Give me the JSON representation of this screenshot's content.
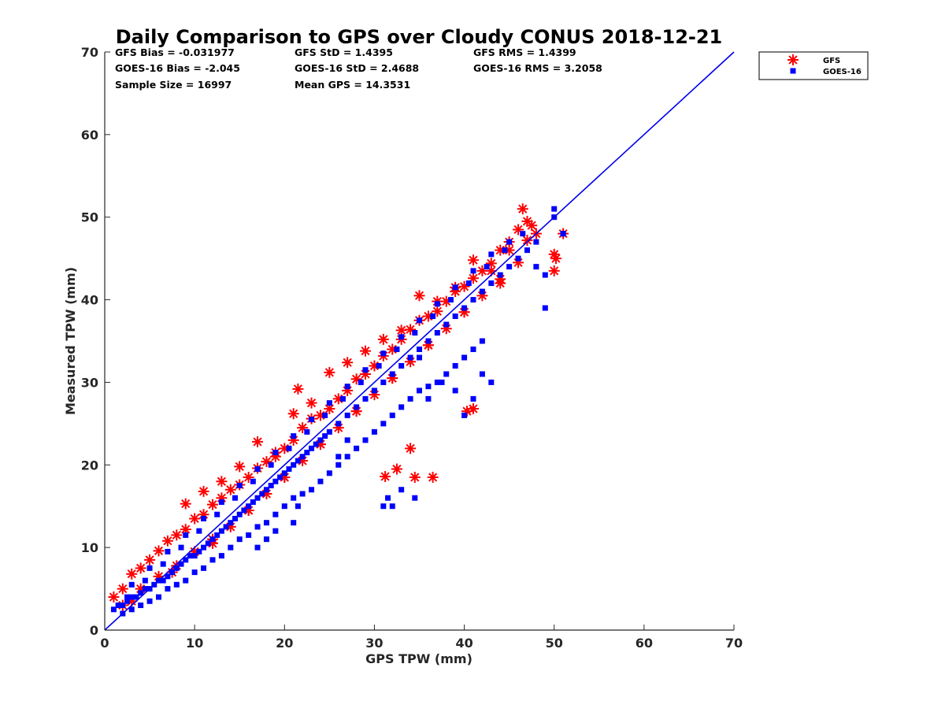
{
  "chart_data": {
    "type": "scatter",
    "title": "Daily Comparison to GPS over Cloudy CONUS 2018-12-21",
    "xlabel": "GPS TPW (mm)",
    "ylabel": "Measured TPW (mm)",
    "xlim": [
      0,
      70
    ],
    "ylim": [
      0,
      70
    ],
    "xticks": [
      "0",
      "10",
      "20",
      "30",
      "40",
      "50",
      "60",
      "70"
    ],
    "yticks": [
      "0",
      "10",
      "20",
      "30",
      "40",
      "50",
      "60",
      "70"
    ],
    "grid": false,
    "legend_position": "outside-top-right",
    "stats": [
      "GFS Bias = -0.031977",
      "GFS StD = 1.4395",
      "GFS RMS = 1.4399",
      "GOES-16 Bias = -2.045",
      "GOES-16 StD = 2.4688",
      "GOES-16 RMS = 3.2058",
      "Sample Size = 16997",
      "Mean GPS = 14.3531"
    ],
    "reference_line": {
      "x": [
        0,
        70
      ],
      "y": [
        0,
        70
      ],
      "color": "#0000ee"
    },
    "series": [
      {
        "name": "GFS",
        "marker": "asterisk",
        "color": "#ff0000",
        "x": [
          1,
          2,
          3,
          4,
          5,
          6,
          7,
          8,
          9,
          10,
          11,
          12,
          13,
          14,
          15,
          16,
          17,
          18,
          19,
          20,
          21,
          22,
          23,
          24,
          25,
          26,
          27,
          28,
          29,
          30,
          31,
          32,
          33,
          34,
          35,
          36,
          37,
          38,
          39,
          40,
          41,
          42,
          43,
          44,
          45,
          46,
          47,
          48,
          2,
          4,
          6,
          8,
          10,
          12,
          14,
          16,
          18,
          20,
          22,
          24,
          26,
          28,
          30,
          32,
          34,
          36,
          38,
          40,
          42,
          44,
          46,
          9,
          11,
          13,
          15,
          17,
          19,
          21,
          23,
          25,
          27,
          29,
          31,
          33,
          35,
          37,
          39,
          41,
          43,
          45,
          47,
          21.5,
          34,
          36.5,
          31.2,
          32.5,
          34.5,
          40.3,
          41,
          50,
          50.2,
          50,
          51,
          46.5,
          47.5,
          3,
          7.5,
          12,
          16,
          20,
          24,
          28,
          32,
          36,
          40,
          44
        ],
        "y": [
          4,
          5,
          6.8,
          7.5,
          8.5,
          9.6,
          10.8,
          11.5,
          12.2,
          13.5,
          14,
          15.2,
          16,
          17,
          17.6,
          18.5,
          19.6,
          20.4,
          21,
          22,
          23,
          24.5,
          25.6,
          26,
          26.8,
          28,
          29,
          30.4,
          31,
          32,
          33.2,
          34,
          35.2,
          36.4,
          37.5,
          38,
          38.6,
          39.8,
          41,
          41.6,
          42.6,
          43.5,
          44.4,
          46,
          47,
          48.5,
          49.5,
          48,
          3,
          5,
          6.5,
          7.8,
          9.5,
          10.5,
          12.5,
          14.5,
          16.5,
          18.5,
          20.5,
          22.5,
          24.5,
          26.5,
          28.5,
          30.5,
          32.5,
          34.5,
          36.5,
          38.5,
          40.5,
          42.5,
          44.5,
          15.3,
          16.8,
          18,
          19.8,
          22.8,
          21.5,
          26.2,
          27.5,
          31.2,
          32.4,
          33.8,
          35.2,
          36.3,
          40.5,
          39.8,
          41.5,
          44.8,
          43.5,
          46,
          47.2,
          29.2,
          22,
          18.5,
          18.6,
          19.5,
          18.5,
          26.5,
          26.8,
          43.5,
          45,
          45.5,
          48,
          51,
          49,
          3.5,
          7,
          11,
          14.5,
          18.5,
          22.5,
          26.5,
          30.5,
          34.5,
          38.5,
          42
        ]
      },
      {
        "name": "GOES-16",
        "marker": "square",
        "color": "#0000ff",
        "x": [
          1,
          1.5,
          2,
          2.5,
          3,
          3.5,
          4,
          4.5,
          5,
          5.5,
          6,
          6.5,
          7,
          7.5,
          8,
          8.5,
          9,
          9.5,
          10,
          10.5,
          11,
          11.5,
          12,
          12.5,
          13,
          13.5,
          14,
          14.5,
          15,
          15.5,
          16,
          16.5,
          17,
          17.5,
          18,
          18.5,
          19,
          19.5,
          20,
          20.5,
          21,
          21.5,
          22,
          22.5,
          23,
          23.5,
          24,
          24.5,
          25,
          26,
          27,
          28,
          29,
          30,
          31,
          32,
          33,
          34,
          35,
          36,
          37,
          38,
          39,
          40,
          41,
          42,
          43,
          44,
          45,
          46,
          47,
          48,
          49,
          50,
          51,
          2,
          3,
          4,
          5,
          6,
          7,
          8,
          9,
          10,
          11,
          12,
          13,
          14,
          15,
          16,
          17,
          18,
          19,
          20,
          21,
          22,
          23,
          24,
          25,
          26,
          27,
          28,
          29,
          30,
          31,
          32,
          33,
          34,
          35,
          36,
          37,
          38,
          39,
          40,
          41,
          42,
          2.5,
          4.5,
          6.5,
          8.5,
          10.5,
          12.5,
          14.5,
          16.5,
          18.5,
          20.5,
          22.5,
          24.5,
          26.5,
          28.5,
          30.5,
          32.5,
          34.5,
          36.5,
          38.5,
          40.5,
          42.5,
          44.5,
          46.5,
          17,
          18,
          19,
          21,
          21.5,
          26,
          27,
          31,
          31.5,
          32,
          33,
          34.5,
          35,
          36,
          37.5,
          39,
          40,
          41,
          42,
          43,
          48,
          49,
          50,
          51,
          3,
          5,
          7,
          9,
          11,
          13,
          15,
          17,
          19,
          21,
          23,
          25,
          27,
          29,
          31,
          33,
          35,
          37,
          39,
          41,
          43,
          45
        ],
        "y": [
          2.5,
          3,
          3,
          3.5,
          4,
          4,
          4.5,
          5,
          5,
          5.5,
          6,
          6,
          6.5,
          7,
          7.5,
          8,
          8.5,
          9,
          9,
          9.5,
          10,
          10.5,
          11,
          11.5,
          12,
          12.5,
          13,
          13.5,
          14,
          14.5,
          15,
          15.5,
          16,
          16.5,
          17,
          17.5,
          18,
          18.5,
          19,
          19.5,
          20,
          20.5,
          21,
          21.5,
          22,
          22.5,
          23,
          23.5,
          24,
          25,
          26,
          27,
          28,
          29,
          30,
          31,
          32,
          33,
          34,
          35,
          36,
          37,
          38,
          39,
          40,
          41,
          42,
          43,
          44,
          45,
          46,
          44,
          43,
          51,
          48,
          2,
          2.5,
          3,
          3.5,
          4,
          5,
          5.5,
          6,
          7,
          7.5,
          8.5,
          9,
          10,
          11,
          11.5,
          12.5,
          13,
          14,
          15,
          16,
          16.5,
          17,
          18,
          19,
          20,
          21,
          22,
          23,
          24,
          25,
          26,
          27,
          28,
          29,
          29.5,
          30,
          31,
          32,
          33,
          34,
          35,
          4,
          6,
          8,
          10,
          12,
          14,
          16,
          18,
          20,
          22,
          24,
          26,
          28,
          30,
          32,
          34,
          36,
          38,
          40,
          42,
          44,
          46,
          48,
          10,
          11,
          12,
          13,
          15,
          21,
          23,
          15,
          16,
          15,
          17,
          16,
          33,
          28,
          30,
          29,
          26,
          28,
          31,
          30,
          47,
          39,
          50,
          48,
          5.5,
          7.5,
          9.5,
          11.5,
          13.5,
          15.5,
          17.5,
          19.5,
          21.5,
          23.5,
          25.5,
          27.5,
          29.5,
          31.5,
          33.5,
          35.5,
          37.5,
          39.5,
          41.5,
          43.5,
          45.5,
          47
        ]
      }
    ]
  }
}
